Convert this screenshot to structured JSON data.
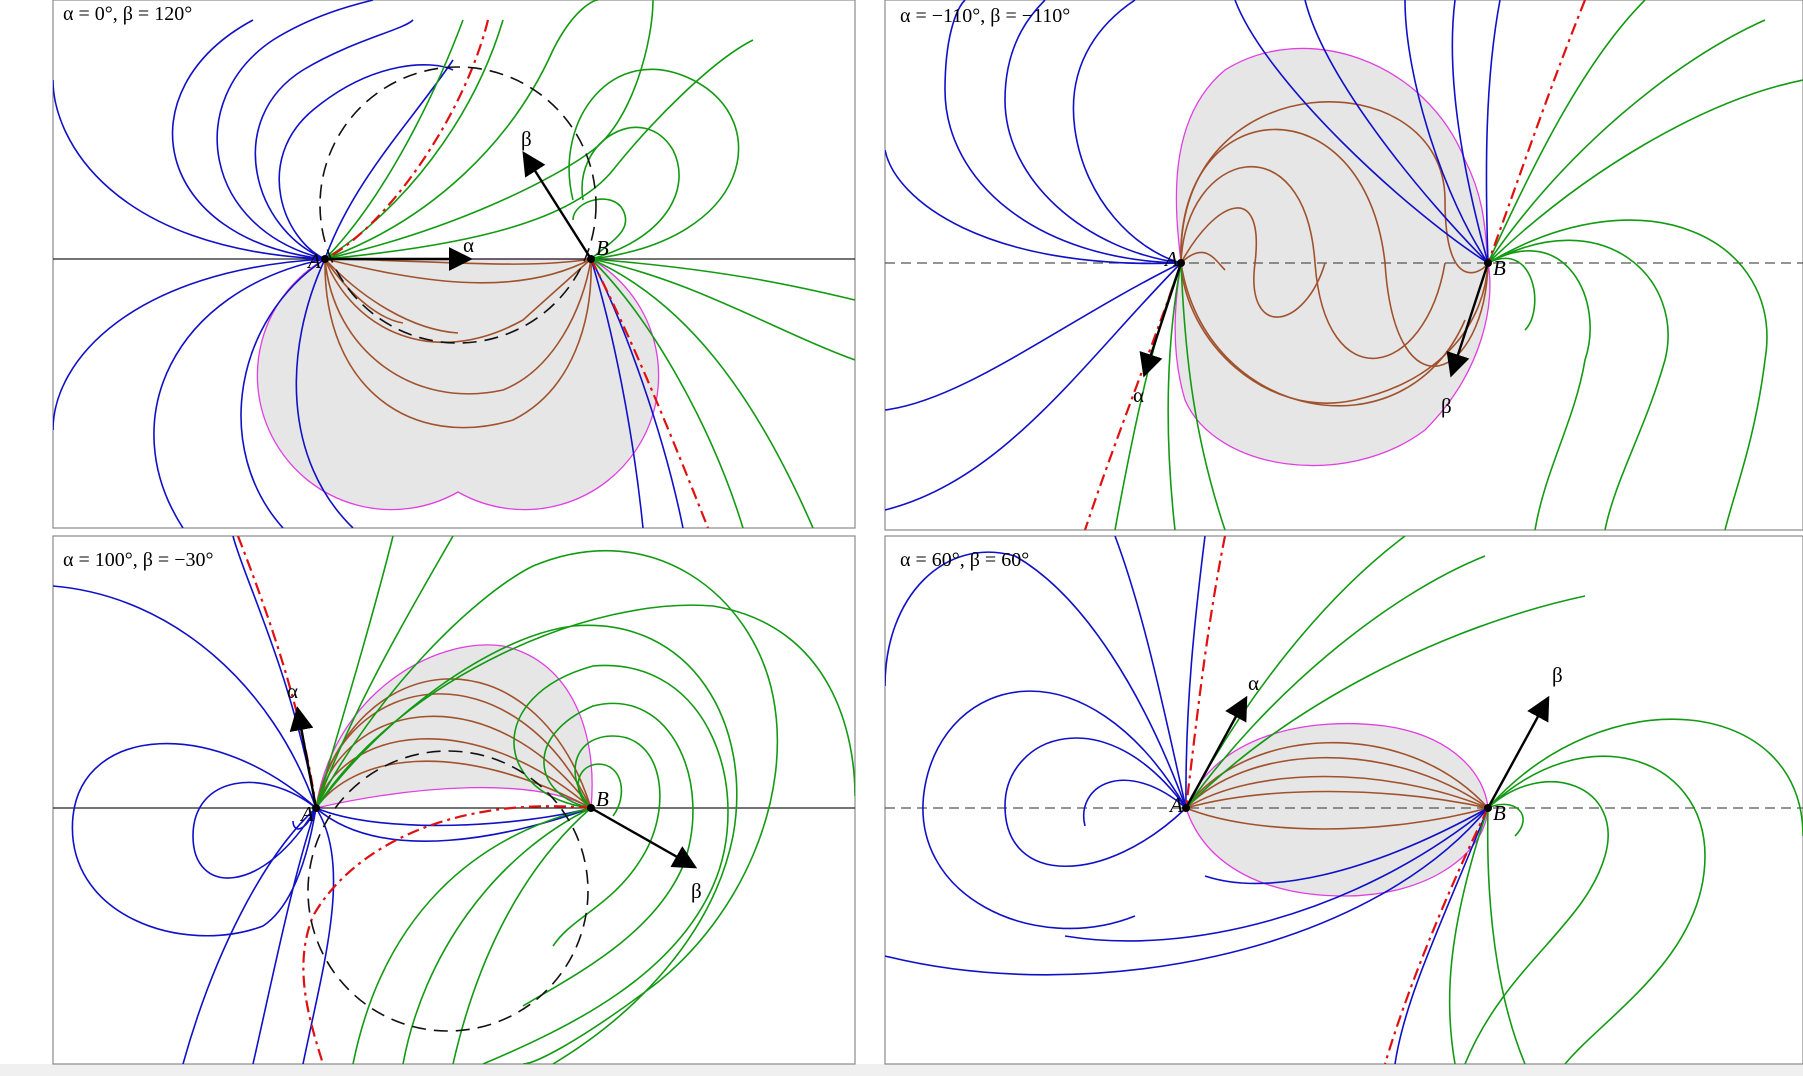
{
  "figure": {
    "panels": [
      {
        "id": "top-left",
        "title": "α = 0°,  β = 120°",
        "point_a_label": "A",
        "point_b_label": "B",
        "alpha_label": "α",
        "beta_label": "β",
        "alpha_deg": 0,
        "beta_deg": 120,
        "has_dashed_circle": true
      },
      {
        "id": "top-right",
        "title": "α = −110°,  β = −110°",
        "point_a_label": "A",
        "point_b_label": "B",
        "alpha_label": "α",
        "beta_label": "β",
        "alpha_deg": -110,
        "beta_deg": -110,
        "has_dashed_circle": false
      },
      {
        "id": "bottom-left",
        "title": "α = 100°,  β = −30°",
        "point_a_label": "A",
        "point_b_label": "B",
        "alpha_label": "α",
        "beta_label": "β",
        "alpha_deg": 100,
        "beta_deg": -30,
        "has_dashed_circle": true
      },
      {
        "id": "bottom-right",
        "title": "α = 60°,  β = 60°",
        "point_a_label": "A",
        "point_b_label": "B",
        "alpha_label": "α",
        "beta_label": "β",
        "alpha_deg": 60,
        "beta_deg": 60,
        "has_dashed_circle": false
      }
    ],
    "colors": {
      "family_1": "#1010c8",
      "family_2": "#139a13",
      "inner_family": "#a0522d",
      "separatrix": "#e01010",
      "shaded_region": "#e6e6e6",
      "region_boundary": "#e040e0"
    }
  }
}
